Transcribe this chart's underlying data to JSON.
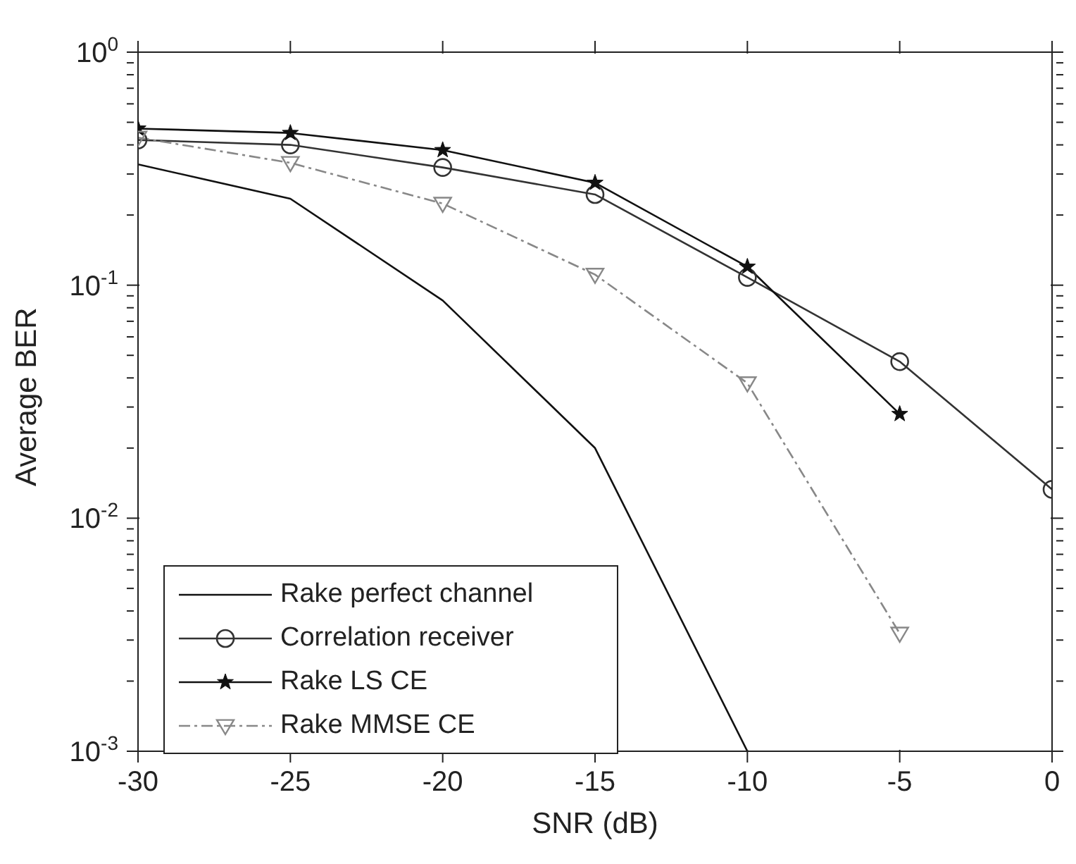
{
  "chart_data": {
    "type": "line",
    "xlabel": "SNR (dB)",
    "ylabel": "Average BER",
    "log": "y",
    "legend": "bottom left",
    "x": [
      -30,
      -25,
      -20,
      -15,
      -10,
      -5,
      0
    ],
    "xlim": [
      -30,
      0
    ],
    "xticks": [
      -30,
      -25,
      -20,
      -15,
      -10,
      -5,
      0
    ],
    "ylim": [
      0.001,
      1
    ],
    "yticks": [
      {
        "value": 0.001,
        "label": "10$^{-3}$"
      },
      {
        "value": 0.002,
        "label": null
      },
      {
        "value": 0.003,
        "label": null
      },
      {
        "value": 0.004,
        "label": null
      },
      {
        "value": 0.005,
        "label": null
      },
      {
        "value": 0.006,
        "label": null
      },
      {
        "value": 0.007,
        "label": null
      },
      {
        "value": 0.008,
        "label": null
      },
      {
        "value": 0.009,
        "label": null
      },
      {
        "value": 0.01,
        "label": "10$^{-2}$"
      },
      {
        "value": 0.02,
        "label": null
      },
      {
        "value": 0.03,
        "label": null
      },
      {
        "value": 0.04,
        "label": null
      },
      {
        "value": 0.05,
        "label": null
      },
      {
        "value": 0.06,
        "label": null
      },
      {
        "value": 0.07,
        "label": null
      },
      {
        "value": 0.08,
        "label": null
      },
      {
        "value": 0.09,
        "label": null
      },
      {
        "value": 0.1,
        "label": "10$^{-1}$"
      },
      {
        "value": 0.2,
        "label": null
      },
      {
        "value": 0.3,
        "label": null
      },
      {
        "value": 0.4,
        "label": null
      },
      {
        "value": 0.5,
        "label": null
      },
      {
        "value": 0.6,
        "label": null
      },
      {
        "value": 0.7,
        "label": null
      },
      {
        "value": 0.8,
        "label": null
      },
      {
        "value": 0.9,
        "label": null
      },
      {
        "value": 1,
        "label": "10$^{0}$"
      }
    ],
    "series": [
      {
        "name": "Rake perfect channel",
        "color": "#111111",
        "marker": "none",
        "line_style": "solid",
        "values": [
          0.33,
          0.235,
          0.086,
          0.02,
          0.001,
          null,
          null
        ]
      },
      {
        "name": "Correlation receiver",
        "color": "#333333",
        "marker": "circle",
        "line_style": "solid",
        "values": [
          0.42,
          0.4,
          0.32,
          0.245,
          0.108,
          0.047,
          0.0133
        ]
      },
      {
        "name": "Rake LS CE",
        "color": "#111111",
        "marker": "star",
        "line_style": "solid",
        "values": [
          0.47,
          0.45,
          0.38,
          0.275,
          0.12,
          0.028,
          null
        ]
      },
      {
        "name": "Rake MMSE CE",
        "color": "#888888",
        "marker": "triangle",
        "line_style": "dashed",
        "values": [
          0.43,
          0.335,
          0.224,
          0.111,
          0.038,
          0.0032,
          null
        ]
      }
    ]
  }
}
